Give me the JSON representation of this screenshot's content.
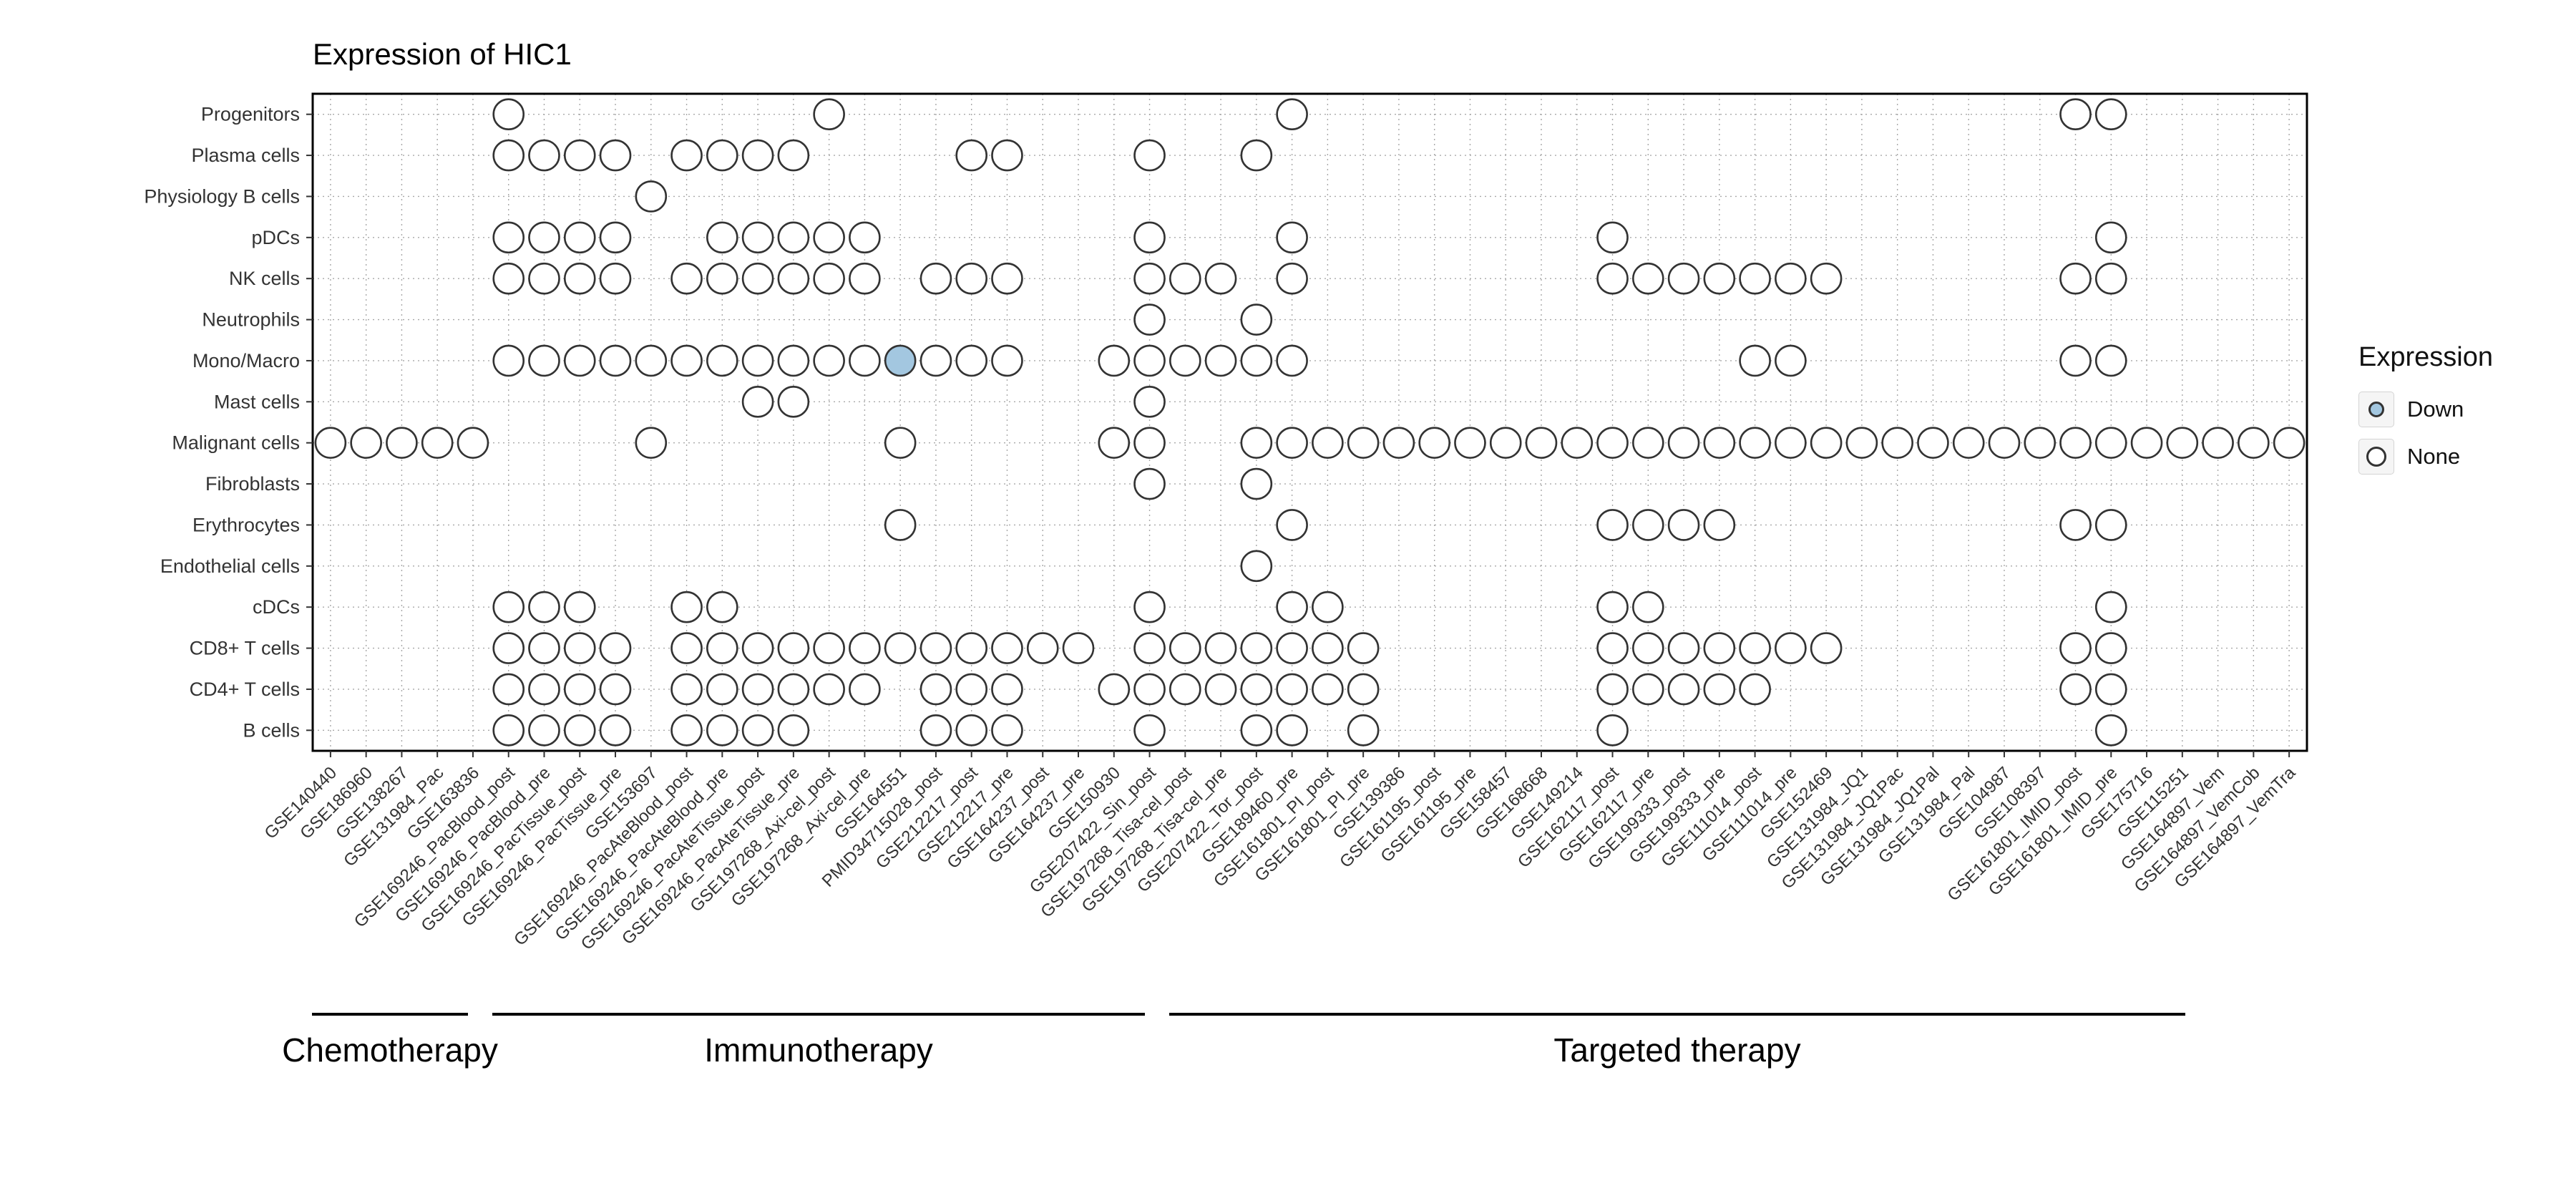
{
  "title": "Expression of HIC1",
  "legend": {
    "title": "Expression",
    "items": [
      {
        "label": "Down",
        "type": "down"
      },
      {
        "label": "None",
        "type": "none"
      }
    ]
  },
  "colors": {
    "down_fill": "#a3c7e0",
    "none_fill": "#ffffff",
    "dot_stroke": "#333333",
    "grid": "#a8a8a8",
    "panel_border": "#000000",
    "axis_text": "#333333",
    "group_line": "#000000"
  },
  "chart_data": {
    "type": "dot-matrix",
    "title": "Expression of HIC1",
    "legend_title": "Expression",
    "legend_values": [
      "Down",
      "None"
    ],
    "rows": [
      "Progenitors",
      "Plasma cells",
      "Physiology B cells",
      "pDCs",
      "NK cells",
      "Neutrophils",
      "Mono/Macro",
      "Mast cells",
      "Malignant cells",
      "Fibroblasts",
      "Erythrocytes",
      "Endothelial cells",
      "cDCs",
      "CD8+ T cells",
      "CD4+ T cells",
      "B cells"
    ],
    "columns": [
      "GSE140440",
      "GSE186960",
      "GSE138267",
      "GSE131984_Pac",
      "GSE163836",
      "GSE169246_PacBlood_post",
      "GSE169246_PacBlood_pre",
      "GSE169246_PacTissue_post",
      "GSE169246_PacTissue_pre",
      "GSE153697",
      "GSE169246_PacAteBlood_post",
      "GSE169246_PacAteBlood_pre",
      "GSE169246_PacAteTissue_post",
      "GSE169246_PacAteTissue_pre",
      "GSE197268_Axi-cel_post",
      "GSE197268_Axi-cel_pre",
      "GSE164551",
      "PMID34715028_post",
      "GSE212217_post",
      "GSE212217_pre",
      "GSE164237_post",
      "GSE164237_pre",
      "GSE150930",
      "GSE207422_Sin_post",
      "GSE197268_Tisa-cel_post",
      "GSE197268_Tisa-cel_pre",
      "GSE207422_Tor_post",
      "GSE189460_pre",
      "GSE161801_PI_post",
      "GSE161801_PI_pre",
      "GSE139386",
      "GSE161195_post",
      "GSE161195_pre",
      "GSE158457",
      "GSE168668",
      "GSE149214",
      "GSE162117_post",
      "GSE162117_pre",
      "GSE199333_post",
      "GSE199333_pre",
      "GSE111014_post",
      "GSE111014_pre",
      "GSE152469",
      "GSE131984_JQ1",
      "GSE131984_JQ1Pac",
      "GSE131984_JQ1Pal",
      "GSE131984_Pal",
      "GSE104987",
      "GSE108397",
      "GSE161801_IMID_post",
      "GSE161801_IMID_pre",
      "GSE175716",
      "GSE115251",
      "GSE164897_Vem",
      "GSE164897_VemCob",
      "GSE164897_VemTra"
    ],
    "col_index_base": 1,
    "groups": [
      {
        "label": "Chemotherapy",
        "cols": [
          1,
          5
        ]
      },
      {
        "label": "Immunotherapy",
        "cols": [
          6,
          23
        ]
      },
      {
        "label": "Targeted therapy",
        "cols": [
          24,
          56
        ]
      }
    ],
    "cells": [
      {
        "row": "Progenitors",
        "none": [
          6,
          15,
          28,
          50,
          51
        ],
        "down": []
      },
      {
        "row": "Plasma cells",
        "none": [
          6,
          7,
          8,
          9,
          11,
          12,
          13,
          14,
          19,
          20,
          24,
          27
        ],
        "down": []
      },
      {
        "row": "Physiology B cells",
        "none": [
          10
        ],
        "down": []
      },
      {
        "row": "pDCs",
        "none": [
          6,
          7,
          8,
          9,
          12,
          13,
          14,
          15,
          16,
          24,
          28,
          37,
          51
        ],
        "down": []
      },
      {
        "row": "NK cells",
        "none": [
          6,
          7,
          8,
          9,
          11,
          12,
          13,
          14,
          15,
          16,
          18,
          19,
          20,
          24,
          25,
          26,
          28,
          37,
          38,
          39,
          40,
          41,
          42,
          43,
          50,
          51
        ],
        "down": []
      },
      {
        "row": "Neutrophils",
        "none": [
          24,
          27
        ],
        "down": []
      },
      {
        "row": "Mono/Macro",
        "none": [
          6,
          7,
          8,
          9,
          10,
          11,
          12,
          13,
          14,
          15,
          16,
          18,
          19,
          20,
          23,
          24,
          25,
          26,
          27,
          28,
          41,
          42,
          50,
          51
        ],
        "down": [
          17
        ]
      },
      {
        "row": "Mast cells",
        "none": [
          13,
          14,
          24
        ],
        "down": []
      },
      {
        "row": "Malignant cells",
        "none": [
          1,
          2,
          3,
          4,
          5,
          10,
          17,
          23,
          24,
          27,
          28,
          29,
          30,
          31,
          32,
          33,
          34,
          35,
          36,
          37,
          38,
          39,
          40,
          41,
          42,
          43,
          44,
          45,
          46,
          47,
          48,
          49,
          50,
          51,
          52,
          53,
          54,
          55,
          56
        ],
        "down": []
      },
      {
        "row": "Fibroblasts",
        "none": [
          24,
          27
        ],
        "down": []
      },
      {
        "row": "Erythrocytes",
        "none": [
          17,
          28,
          37,
          38,
          39,
          40,
          50,
          51
        ],
        "down": []
      },
      {
        "row": "Endothelial cells",
        "none": [
          27
        ],
        "down": []
      },
      {
        "row": "cDCs",
        "none": [
          6,
          7,
          8,
          11,
          12,
          24,
          28,
          29,
          37,
          38,
          51
        ],
        "down": []
      },
      {
        "row": "CD8+ T cells",
        "none": [
          6,
          7,
          8,
          9,
          11,
          12,
          13,
          14,
          15,
          16,
          17,
          18,
          19,
          20,
          21,
          22,
          24,
          25,
          26,
          27,
          28,
          29,
          30,
          37,
          38,
          39,
          40,
          41,
          42,
          43,
          50,
          51
        ],
        "down": []
      },
      {
        "row": "CD4+ T cells",
        "none": [
          6,
          7,
          8,
          9,
          11,
          12,
          13,
          14,
          15,
          16,
          18,
          19,
          20,
          23,
          24,
          25,
          26,
          27,
          28,
          29,
          30,
          37,
          38,
          39,
          40,
          41,
          50,
          51
        ],
        "down": []
      },
      {
        "row": "B cells",
        "none": [
          6,
          7,
          8,
          9,
          11,
          12,
          13,
          14,
          18,
          19,
          20,
          24,
          27,
          28,
          30,
          37,
          51
        ],
        "down": []
      }
    ]
  }
}
